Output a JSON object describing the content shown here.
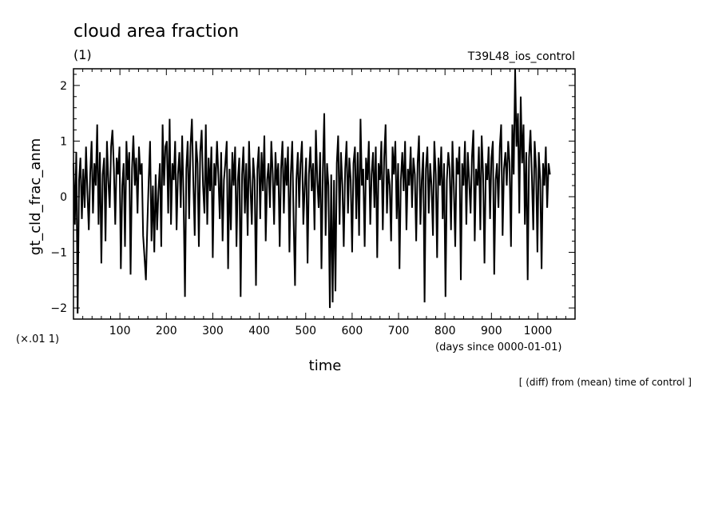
{
  "chart_data": {
    "type": "line",
    "title": "cloud area fraction",
    "subtitle": "(1)",
    "experiment": "T39L48_ios_control",
    "xlabel": "time",
    "xunits": "(days since 0000-01-01)",
    "ylabel": "gt_cld_frac_anm",
    "yscale_note": "(×.01 1)",
    "footnote": "[ (diff) from (mean) time of control ]",
    "xlim": [
      0,
      1080
    ],
    "ylim": [
      -2.2,
      2.3
    ],
    "xticks": [
      100,
      200,
      300,
      400,
      500,
      600,
      700,
      800,
      900,
      1000
    ],
    "yticks": [
      -2,
      -1,
      0,
      1,
      2
    ],
    "grid": false,
    "series": [
      {
        "color": "#000000",
        "step_days": 3,
        "values": [
          0.6,
          -0.5,
          0.8,
          -2.1,
          0.3,
          0.7,
          -0.4,
          0.5,
          -0.2,
          0.9,
          0.1,
          -0.6,
          0.4,
          1.0,
          -0.3,
          0.6,
          0.2,
          1.3,
          -0.5,
          0.8,
          -1.2,
          0.4,
          0.7,
          -0.8,
          1.0,
          0.3,
          -0.2,
          0.9,
          1.2,
          0.5,
          -0.5,
          0.7,
          0.4,
          0.9,
          -1.3,
          0.2,
          0.6,
          -0.9,
          1.0,
          0.3,
          0.8,
          -1.4,
          0.5,
          1.1,
          0.2,
          0.7,
          -0.3,
          0.9,
          0.4,
          0.6,
          -0.7,
          -1.1,
          -1.5,
          -0.5,
          0.3,
          1.0,
          -0.8,
          0.2,
          -1.0,
          0.4,
          -0.6,
          0.1,
          0.6,
          -0.9,
          1.3,
          0.2,
          0.9,
          1.0,
          -0.3,
          1.4,
          -0.5,
          0.6,
          0.3,
          1.0,
          -0.6,
          0.4,
          0.8,
          -0.2,
          1.1,
          0.0,
          -1.8,
          0.5,
          1.0,
          -0.4,
          0.9,
          1.4,
          0.3,
          -0.7,
          1.0,
          0.6,
          -0.9,
          0.8,
          1.2,
          0.2,
          -0.3,
          1.3,
          -0.5,
          0.7,
          0.1,
          0.9,
          -1.1,
          0.6,
          0.2,
          1.0,
          0.4,
          -0.4,
          0.8,
          -0.8,
          0.3,
          0.6,
          1.0,
          -1.3,
          0.5,
          -0.6,
          0.8,
          0.2,
          0.9,
          -0.9,
          0.3,
          0.7,
          -1.8,
          0.4,
          0.9,
          -0.3,
          0.6,
          -0.7,
          1.0,
          0.2,
          -0.5,
          0.7,
          0.3,
          -1.6,
          0.5,
          0.9,
          -0.4,
          0.8,
          0.1,
          1.1,
          -0.8,
          0.3,
          0.6,
          -0.2,
          1.0,
          0.4,
          -0.5,
          0.8,
          0.2,
          0.6,
          -0.9,
          0.5,
          1.0,
          -0.3,
          0.7,
          0.2,
          0.9,
          -1.0,
          0.4,
          1.0,
          -0.4,
          -1.6,
          0.3,
          0.8,
          -0.2,
          0.6,
          1.0,
          -0.5,
          0.2,
          0.7,
          -1.2,
          0.4,
          0.9,
          0.1,
          0.6,
          -0.6,
          1.2,
          0.3,
          -0.2,
          0.8,
          -1.3,
          0.5,
          1.5,
          -0.7,
          0.6,
          0.2,
          -2.0,
          0.4,
          -1.9,
          0.3,
          -1.7,
          0.6,
          1.1,
          -0.5,
          0.8,
          0.2,
          -0.9,
          0.5,
          1.0,
          -0.3,
          0.7,
          0.3,
          -1.0,
          0.6,
          0.9,
          -0.4,
          0.8,
          -0.7,
          1.4,
          0.2,
          0.5,
          -0.9,
          0.7,
          0.3,
          1.0,
          -0.5,
          0.4,
          0.8,
          -0.2,
          0.9,
          -1.1,
          0.6,
          0.3,
          1.0,
          -0.6,
          0.7,
          1.3,
          -0.3,
          0.5,
          0.2,
          -0.8,
          0.9,
          0.4,
          1.0,
          -0.4,
          0.6,
          -1.3,
          0.3,
          0.8,
          0.1,
          1.0,
          -0.6,
          0.5,
          0.2,
          0.9,
          -0.2,
          0.7,
          0.4,
          -0.8,
          0.6,
          1.1,
          -0.5,
          0.3,
          0.8,
          -1.9,
          0.5,
          0.9,
          -0.3,
          0.6,
          0.2,
          -0.7,
          1.0,
          0.4,
          -1.1,
          0.7,
          0.2,
          0.9,
          -0.4,
          0.6,
          -1.8,
          0.3,
          0.8,
          0.5,
          -0.6,
          1.0,
          0.2,
          -0.9,
          0.7,
          0.4,
          0.9,
          -1.5,
          0.6,
          0.2,
          1.0,
          -0.5,
          0.8,
          0.3,
          -0.3,
          0.7,
          1.2,
          -0.8,
          0.5,
          0.2,
          0.9,
          -0.6,
          1.1,
          0.4,
          -1.2,
          0.6,
          0.3,
          0.9,
          -0.4,
          0.7,
          1.0,
          -1.4,
          0.3,
          0.6,
          -0.2,
          0.9,
          1.3,
          -0.7,
          0.5,
          0.8,
          0.2,
          1.0,
          0.6,
          -0.9,
          1.3,
          0.4,
          2.3,
          0.9,
          1.5,
          -0.3,
          1.8,
          0.6,
          1.3,
          -0.5,
          0.8,
          -1.5,
          0.7,
          1.2,
          0.4,
          -0.6,
          1.0,
          0.5,
          -1.0,
          0.8,
          0.3,
          -1.3,
          0.6,
          0.2,
          0.9,
          -0.2,
          0.6,
          0.4
        ]
      }
    ]
  }
}
